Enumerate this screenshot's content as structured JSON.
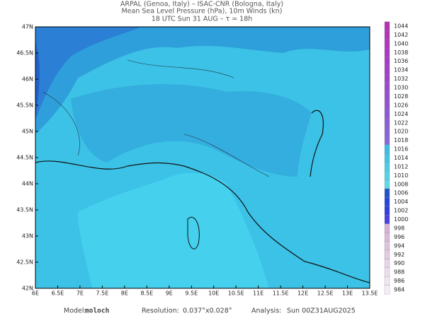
{
  "header": {
    "line1": "ARPAL (Genoa, Italy)  –  ISAC-CNR (Bologna, Italy)",
    "line2": "Mean Sea Level Pressure (hPa), 10m Winds (kn)",
    "line3": "18 UTC Sun 31 AUG  –  τ = 18h"
  },
  "map": {
    "lon_labels": [
      "6E",
      "6.5E",
      "7E",
      "7.5E",
      "8E",
      "8.5E",
      "9E",
      "9.5E",
      "10E",
      "10.5E",
      "11E",
      "11.5E",
      "12E",
      "12.5E",
      "13E",
      "13.5E"
    ],
    "lat_labels": [
      "47N",
      "46.5N",
      "46N",
      "45.5N",
      "45N",
      "44.5N",
      "44N",
      "43.5N",
      "43N",
      "42.5N",
      "42N"
    ]
  },
  "colorbar": {
    "labels": [
      1044,
      1042,
      1040,
      1038,
      1036,
      1034,
      1032,
      1030,
      1028,
      1026,
      1024,
      1022,
      1020,
      1018,
      1016,
      1014,
      1012,
      1010,
      1008,
      1006,
      1004,
      1002,
      1000,
      998,
      996,
      994,
      992,
      990,
      988,
      986,
      984
    ]
  },
  "footer": {
    "model_label": "Model:",
    "model": "moloch",
    "resolution_label": "Resolution:",
    "resolution": "0.037°x0.028°",
    "analysis_label": "Analysis:",
    "analysis": "Sun 00Z31AUG2025"
  }
}
